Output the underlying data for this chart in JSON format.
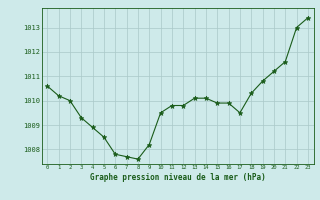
{
  "x": [
    0,
    1,
    2,
    3,
    4,
    5,
    6,
    7,
    8,
    9,
    10,
    11,
    12,
    13,
    14,
    15,
    16,
    17,
    18,
    19,
    20,
    21,
    22,
    23
  ],
  "y": [
    1010.6,
    1010.2,
    1010.0,
    1009.3,
    1008.9,
    1008.5,
    1007.8,
    1007.7,
    1007.6,
    1008.2,
    1009.5,
    1009.8,
    1009.8,
    1010.1,
    1010.1,
    1009.9,
    1009.9,
    1009.5,
    1010.3,
    1010.8,
    1011.2,
    1011.6,
    1013.0,
    1013.4
  ],
  "ylim": [
    1007.4,
    1013.8
  ],
  "yticks": [
    1008,
    1009,
    1010,
    1011,
    1012,
    1013
  ],
  "xticks": [
    0,
    1,
    2,
    3,
    4,
    5,
    6,
    7,
    8,
    9,
    10,
    11,
    12,
    13,
    14,
    15,
    16,
    17,
    18,
    19,
    20,
    21,
    22,
    23
  ],
  "line_color": "#1a5c1a",
  "marker": "*",
  "marker_size": 3.5,
  "bg_color": "#ceeaea",
  "grid_color": "#aac8c8",
  "xlabel": "Graphe pression niveau de la mer (hPa)",
  "xlabel_color": "#1a5c1a",
  "tick_color": "#1a5c1a",
  "border_color": "#1a5c1a",
  "linewidth": 0.8
}
